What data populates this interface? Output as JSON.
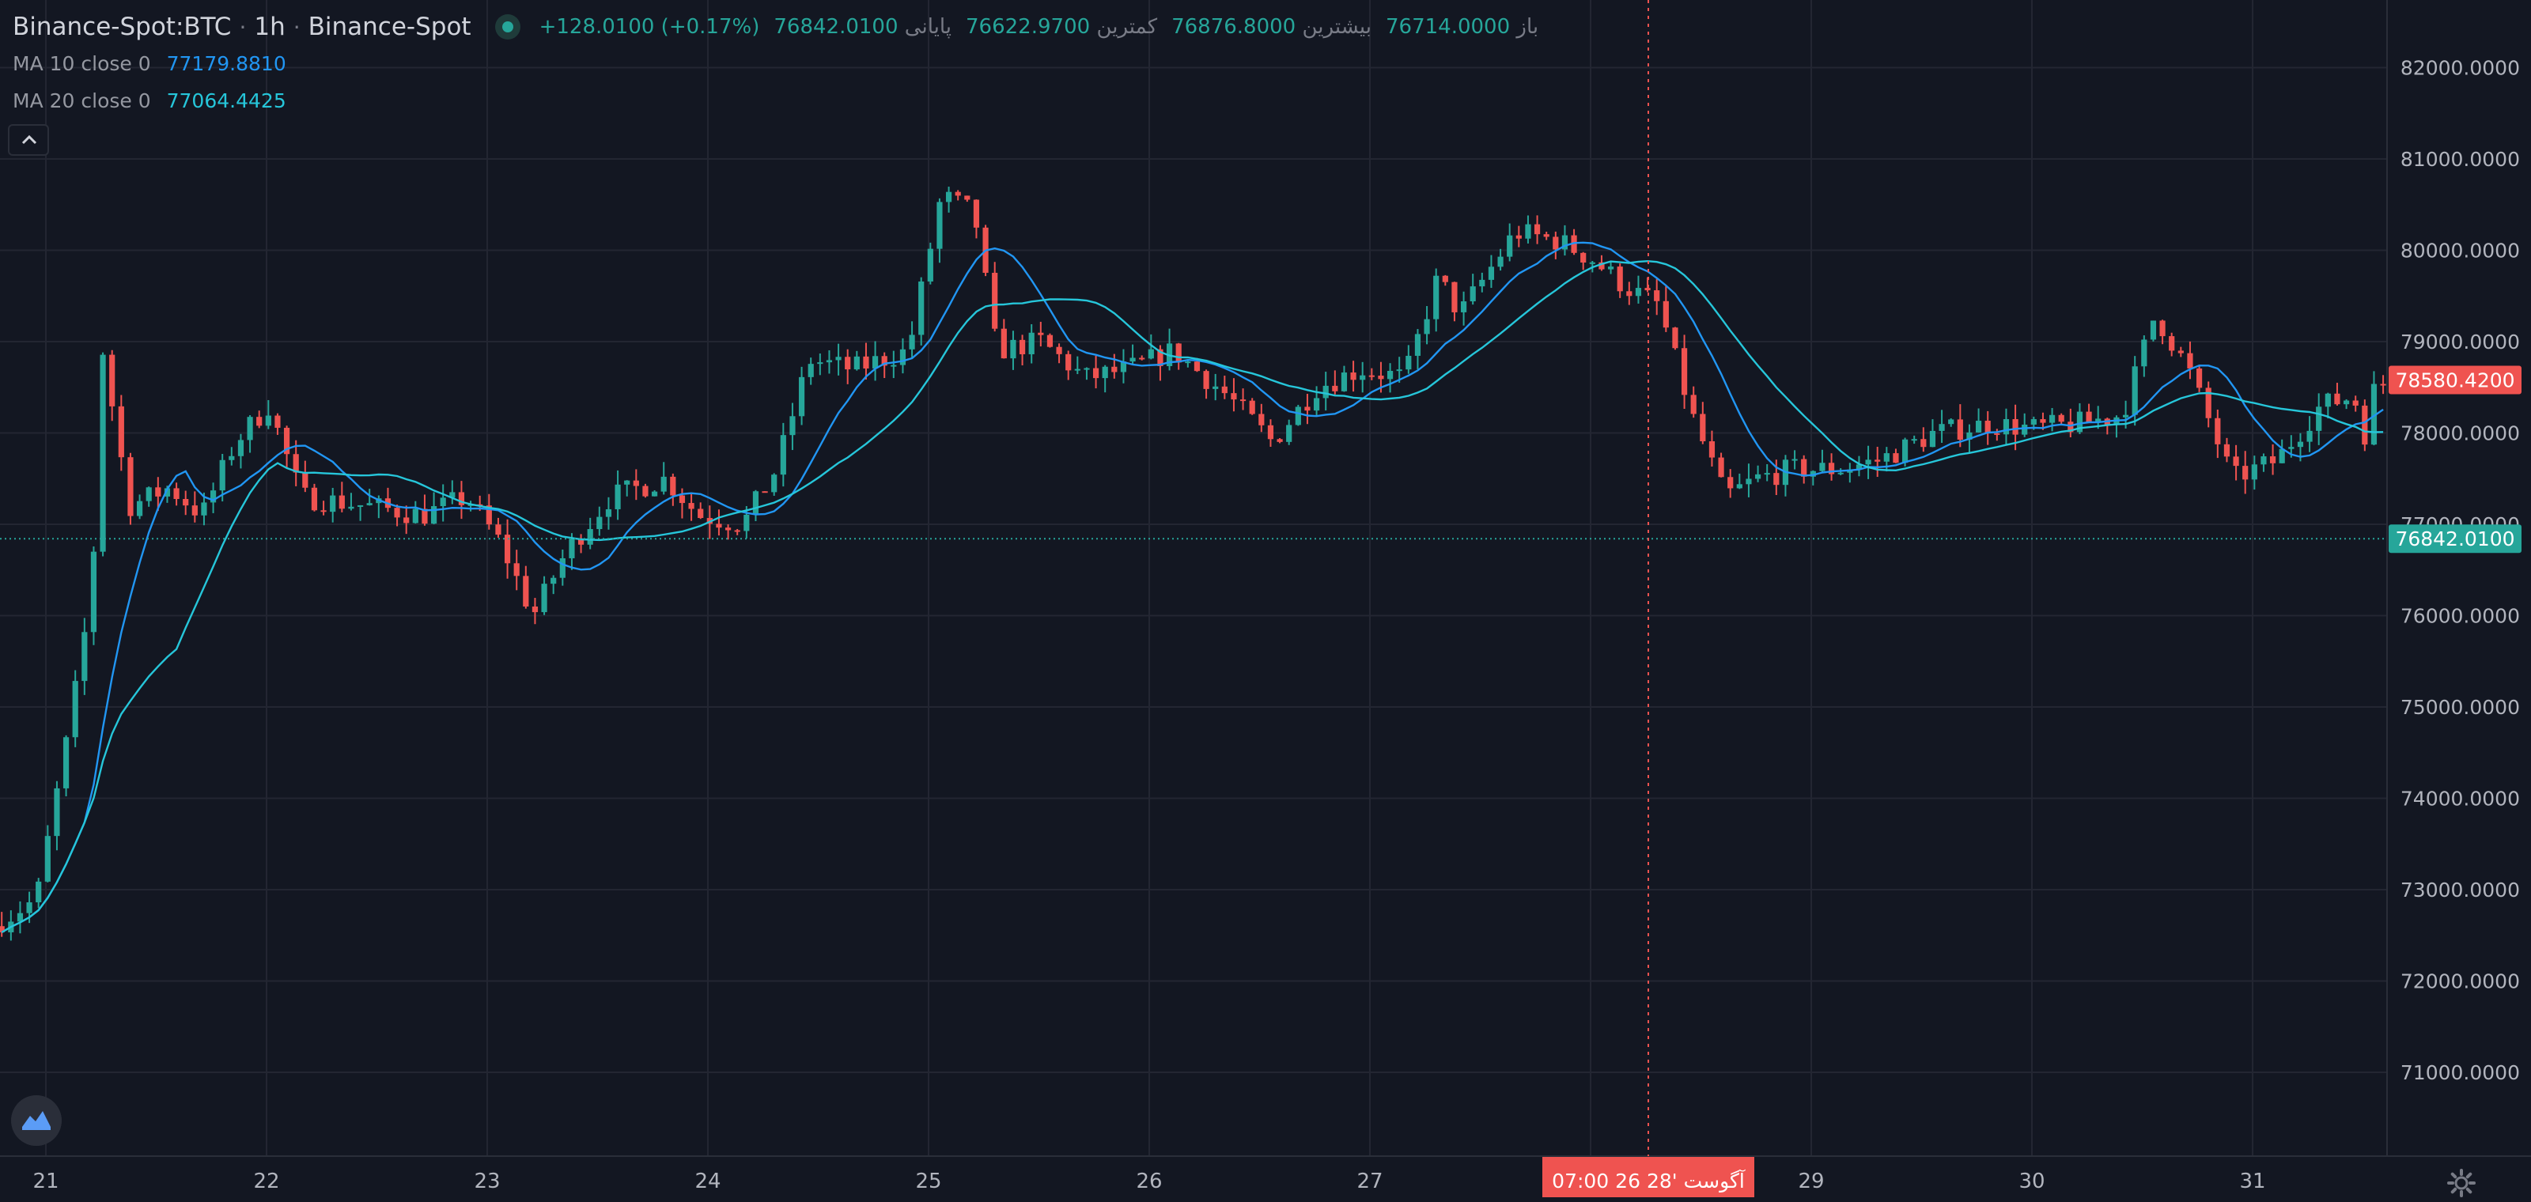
{
  "header": {
    "symbol": "Binance-Spot:BTC",
    "interval": "1h",
    "exchange": "Binance-Spot",
    "open_label": "باز",
    "open_value": "76714.0000",
    "high_label": "بیشترین",
    "high_value": "76876.8000",
    "low_label": "کمترین",
    "low_value": "76622.9700",
    "close_label": "پایانی",
    "close_value": "76842.0100",
    "change": "+128.0100 (+0.17%)"
  },
  "indicators": [
    {
      "label": "MA 10 close 0",
      "value": "77179.8810",
      "color": "#2196f3"
    },
    {
      "label": "MA 20 close 0",
      "value": "77064.4425",
      "color": "#26c6da"
    }
  ],
  "colors": {
    "background": "#131722",
    "up": "#26a69a",
    "down": "#ef5350",
    "grid": "#232632",
    "axis_text": "#b2b5be",
    "crosshair": "#ef5350",
    "current_price": "#26a69a"
  },
  "icons": [
    "collapse-chevron-icon",
    "tradingview-logo-icon",
    "settings-gear-icon"
  ],
  "chart_data": {
    "type": "candlestick",
    "title": "Binance-Spot:BTC 1h",
    "y_ticks": [
      71000,
      72000,
      73000,
      74000,
      75000,
      76000,
      77000,
      78000,
      79000,
      80000,
      81000,
      82000
    ],
    "y_tick_labels": [
      "71000.0000",
      "72000.0000",
      "73000.0000",
      "74000.0000",
      "75000.0000",
      "76000.0000",
      "77000.0000",
      "78000.0000",
      "79000.0000",
      "80000.0000",
      "81000.0000",
      "82000.0000"
    ],
    "ylim": [
      70200,
      82500
    ],
    "x_tick_labels": [
      "21",
      "22",
      "23",
      "24",
      "25",
      "26",
      "27",
      "28",
      "29",
      "30",
      "31"
    ],
    "xlim_days": [
      20.8,
      31.65
    ],
    "candle_interval": "1h",
    "day_anchors": [
      [
        20.8,
        72600
      ],
      [
        21.0,
        72900
      ],
      [
        21.15,
        74800
      ],
      [
        21.25,
        76300
      ],
      [
        21.3,
        78900
      ],
      [
        21.42,
        77200
      ],
      [
        21.6,
        77400
      ],
      [
        21.75,
        77100
      ],
      [
        21.9,
        77900
      ],
      [
        22.05,
        78300
      ],
      [
        22.2,
        77300
      ],
      [
        22.5,
        77200
      ],
      [
        22.75,
        77100
      ],
      [
        22.95,
        77300
      ],
      [
        23.1,
        76800
      ],
      [
        23.25,
        76000
      ],
      [
        23.4,
        76700
      ],
      [
        23.6,
        77300
      ],
      [
        23.85,
        77500
      ],
      [
        24.0,
        77100
      ],
      [
        24.2,
        77000
      ],
      [
        24.35,
        77600
      ],
      [
        24.5,
        78800
      ],
      [
        24.7,
        78700
      ],
      [
        24.95,
        78900
      ],
      [
        25.1,
        80600
      ],
      [
        25.25,
        80400
      ],
      [
        25.35,
        78900
      ],
      [
        25.55,
        79000
      ],
      [
        25.75,
        78600
      ],
      [
        25.95,
        78700
      ],
      [
        26.15,
        78900
      ],
      [
        26.4,
        78400
      ],
      [
        26.6,
        77900
      ],
      [
        26.8,
        78500
      ],
      [
        27.0,
        78700
      ],
      [
        27.2,
        78600
      ],
      [
        27.35,
        79700
      ],
      [
        27.45,
        79300
      ],
      [
        27.7,
        80200
      ],
      [
        27.9,
        80100
      ],
      [
        28.05,
        79900
      ],
      [
        28.2,
        79600
      ],
      [
        28.35,
        79400
      ],
      [
        28.5,
        78200
      ],
      [
        28.65,
        77300
      ],
      [
        28.8,
        77500
      ],
      [
        28.95,
        77600
      ],
      [
        29.15,
        77600
      ],
      [
        29.35,
        77700
      ],
      [
        29.6,
        78000
      ],
      [
        29.85,
        78100
      ],
      [
        30.05,
        78050
      ],
      [
        30.25,
        78100
      ],
      [
        30.45,
        78200
      ],
      [
        30.6,
        79300
      ],
      [
        30.75,
        78700
      ],
      [
        30.85,
        78100
      ],
      [
        30.95,
        77500
      ],
      [
        31.15,
        77700
      ],
      [
        31.35,
        78300
      ],
      [
        31.5,
        78400
      ],
      [
        31.55,
        78000
      ],
      [
        31.6,
        78550
      ]
    ],
    "ma10_close": 77179.881,
    "ma20_close": 77064.4425,
    "last_price": 78580.42,
    "last_price_label": "78580.4200",
    "crosshair_price": 76842.01,
    "crosshair_price_label": "76842.0100",
    "crosshair_time_label": "07:00  26 آگوست '28",
    "grid": true,
    "legend": "top-left"
  }
}
